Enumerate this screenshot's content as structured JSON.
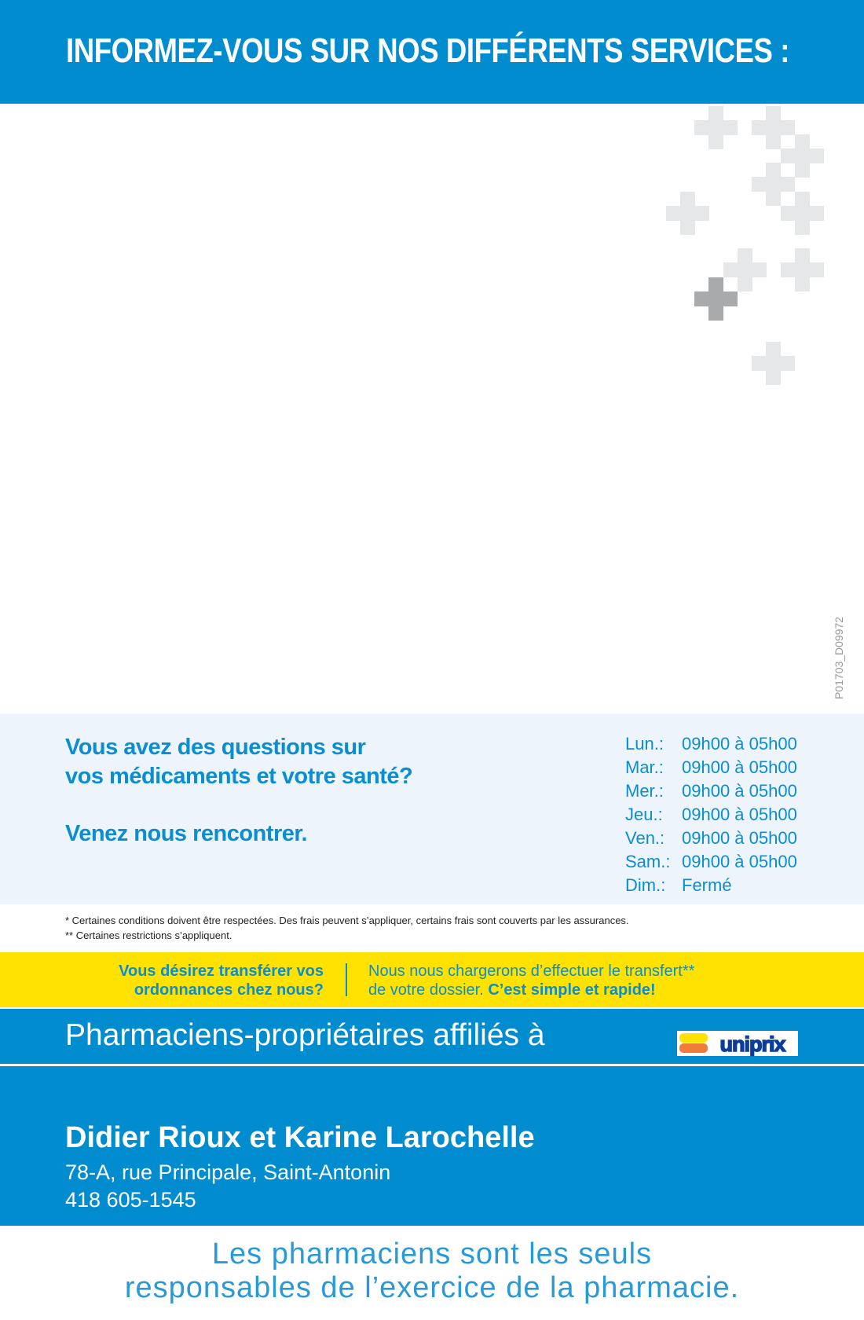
{
  "header": {
    "title": "INFORMEZ-VOUS SUR NOS DIFFÉRENTS SERVICES :"
  },
  "decor": {
    "cross_icon": "plus-cross",
    "light_color": "#e6e7e8",
    "dark_color": "#a9aaac"
  },
  "code": "P01703_D09972",
  "info": {
    "question_line1": "Vous avez des questions sur",
    "question_line2": "vos médicaments et votre santé?",
    "invite": "Venez nous rencontrer.",
    "hours": [
      {
        "day": "Lun.:",
        "time": "09h00 à 05h00"
      },
      {
        "day": "Mar.:",
        "time": "09h00 à 05h00"
      },
      {
        "day": "Mer.:",
        "time": "09h00 à 05h00"
      },
      {
        "day": "Jeu.:",
        "time": "09h00 à 05h00"
      },
      {
        "day": "Ven.:",
        "time": "09h00 à 05h00"
      },
      {
        "day": "Sam.:",
        "time": "09h00 à 05h00"
      },
      {
        "day": "Dim.:",
        "time": "Fermé"
      }
    ]
  },
  "footnotes": [
    "* Certaines conditions doivent être respectées. Des frais peuvent s’appliquer, certains frais sont couverts par les assurances.",
    "** Certaines restrictions s’appliquent."
  ],
  "transfer": {
    "left_line1": "Vous désirez transférer vos",
    "left_line2": "ordonnances chez nous?",
    "right_line1": "Nous nous chargerons d’effectuer le transfert**",
    "right_line2": "de votre dossier.",
    "right_bold": "C’est simple et rapide!"
  },
  "affiliation": {
    "text": "Pharmaciens-propriétaires affiliés à",
    "logo_text": "uniprix"
  },
  "owners": {
    "name": "Didier Rioux et Karine Larochelle",
    "address": "78-A, rue Principale, Saint-Antonin",
    "phone": "418 605-1545"
  },
  "tagline": {
    "line1": "Les pharmaciens sont les seuls",
    "line2": "responsables de l’exercice de la pharmacie."
  },
  "colors": {
    "brand_blue": "#008ccf",
    "yellow": "#ffe200",
    "panel": "#edf4fb"
  }
}
